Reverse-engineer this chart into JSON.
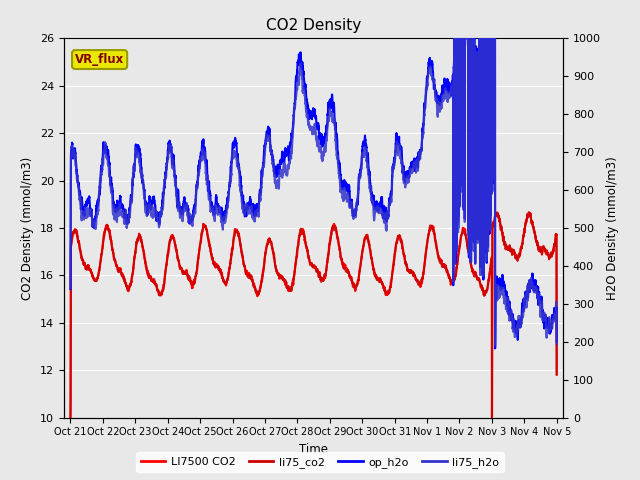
{
  "title": "CO2 Density",
  "xlabel": "Time",
  "ylabel_left": "CO2 Density (mmol/m3)",
  "ylabel_right": "H2O Density (mmol/m3)",
  "ylim_left": [
    10,
    26
  ],
  "ylim_right": [
    0,
    1000
  ],
  "yticks_left": [
    10,
    12,
    14,
    16,
    18,
    20,
    22,
    24,
    26
  ],
  "yticks_right": [
    0,
    100,
    200,
    300,
    400,
    500,
    600,
    700,
    800,
    900,
    1000
  ],
  "xtick_labels": [
    "Oct 21",
    "Oct 22",
    "Oct 23",
    "Oct 24",
    "Oct 25",
    "Oct 26",
    "Oct 27",
    "Oct 28",
    "Oct 29",
    "Oct 30",
    "Oct 31",
    "Nov 1",
    "Nov 2",
    "Nov 3",
    "Nov 4",
    "Nov 5"
  ],
  "fig_bg_color": "#e8e8e8",
  "plot_bg_color": "#e8e8e8",
  "grid_color": "#ffffff",
  "co2_color1": "#ff0000",
  "co2_color2": "#cc0000",
  "h2o_color1": "#0000ff",
  "h2o_color2": "#3333cc",
  "legend_labels": [
    "LI7500 CO2",
    "li75_co2",
    "op_h2o",
    "li75_h2o"
  ],
  "vr_flux_box_color": "#e8e800",
  "vr_flux_text_color": "#880000",
  "vr_flux_edge_color": "#999900",
  "title_fontsize": 11,
  "lw": 1.5
}
